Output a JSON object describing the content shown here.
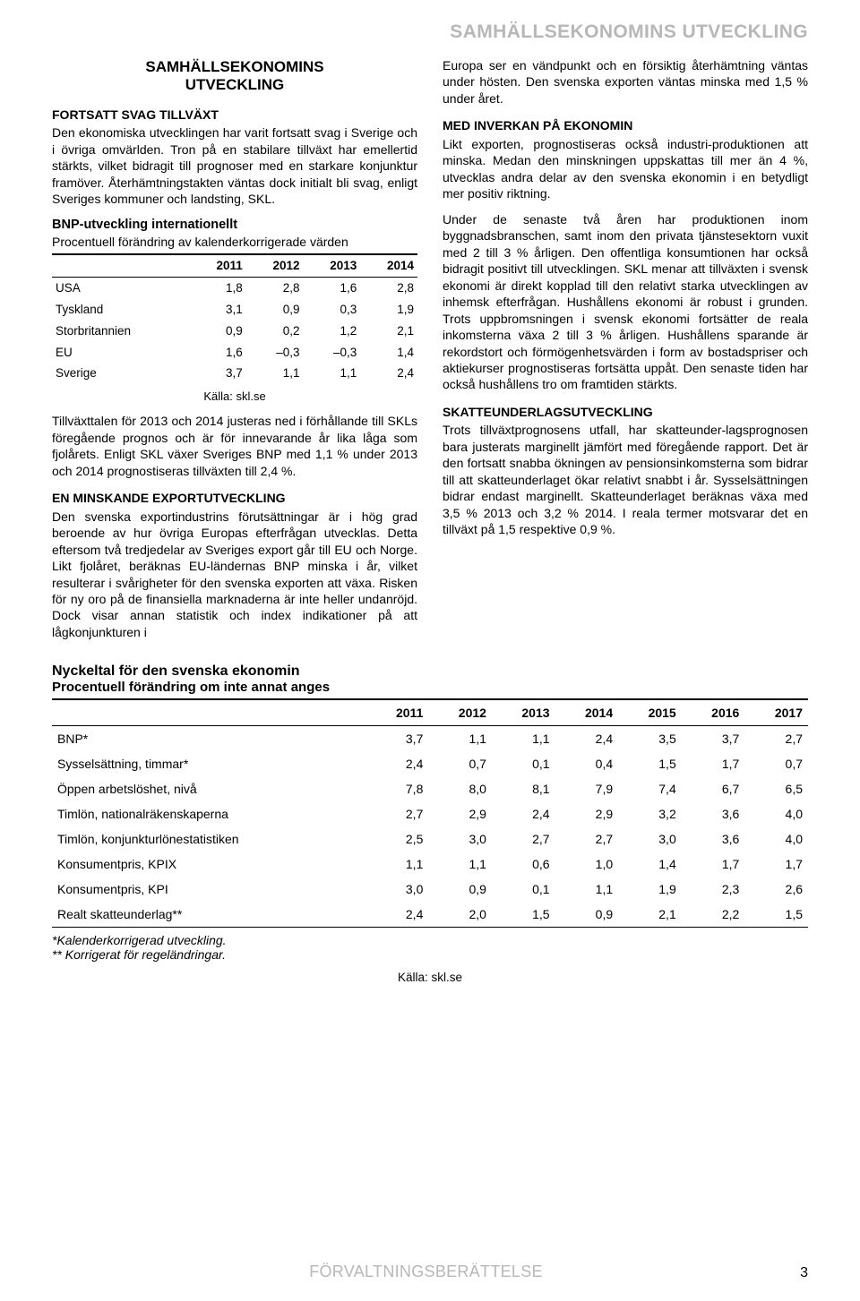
{
  "running_head": "SAMHÄLLSEKONOMINS UTVECKLING",
  "left": {
    "section_title_1": "SAMHÄLLSEKONOMINS",
    "section_title_2": "UTVECKLING",
    "sub1": "FORTSATT SVAG TILLVÄXT",
    "p1": "Den ekonomiska utvecklingen har varit fortsatt svag i Sverige och i övriga omvärlden. Tron på en stabilare tillväxt har emellertid stärkts, vilket bidragit till prognoser med en starkare konjunktur framöver. Återhämtningstakten väntas dock initialt bli svag, enligt Sveriges kommuner och landsting, SKL.",
    "small_tbl": {
      "title": "BNP-utveckling internationellt",
      "sub": "Procentuell förändring av kalenderkorrigerade värden",
      "cols": [
        "",
        "2011",
        "2012",
        "2013",
        "2014"
      ],
      "rows": [
        [
          "USA",
          "1,8",
          "2,8",
          "1,6",
          "2,8"
        ],
        [
          "Tyskland",
          "3,1",
          "0,9",
          "0,3",
          "1,9"
        ],
        [
          "Storbritannien",
          "0,9",
          "0,2",
          "1,2",
          "2,1"
        ],
        [
          "EU",
          "1,6",
          "–0,3",
          "–0,3",
          "1,4"
        ],
        [
          "Sverige",
          "3,7",
          "1,1",
          "1,1",
          "2,4"
        ]
      ],
      "source": "Källa: skl.se"
    },
    "p2": "Tillväxttalen för 2013 och 2014 justeras ned i förhållande till SKLs föregående prognos och är för innevarande år lika låga som fjolårets. Enligt SKL växer Sveriges BNP med 1,1 % under 2013 och 2014 prognostiseras tillväxten till 2,4 %.",
    "sub2": "EN MINSKANDE EXPORTUTVECKLING",
    "p3": "Den svenska exportindustrins förutsättningar är i hög grad beroende av hur övriga Europas efterfrågan utvecklas. Detta eftersom två tredjedelar av Sveriges export går till EU och Norge. Likt fjolåret, beräknas EU-ländernas BNP minska i år, vilket resulterar i svårigheter för den svenska exporten att växa. Risken för ny oro på de finansiella marknaderna är inte heller undanröjd. Dock visar annan statistik och index indikationer på att lågkonjunkturen i"
  },
  "right": {
    "p1": "Europa ser en vändpunkt och en försiktig återhämtning väntas under hösten. Den svenska exporten väntas minska med 1,5 % under året.",
    "sub1": "MED INVERKAN PÅ EKONOMIN",
    "p2": "Likt exporten, prognostiseras också industri-produktionen att minska. Medan den minskningen uppskattas till mer än 4 %, utvecklas andra delar av den svenska ekonomin i en betydligt mer positiv riktning.",
    "p3": "Under de senaste två åren har produktionen inom byggnadsbranschen, samt inom den privata tjänstesektorn vuxit med 2 till 3 % årligen. Den offentliga konsumtionen har också bidragit positivt till utvecklingen. SKL menar att tillväxten i svensk ekonomi är direkt kopplad till den relativt starka utvecklingen av inhemsk efterfrågan. Hushållens ekonomi är robust i grunden. Trots uppbromsningen i svensk ekonomi fortsätter de reala inkomsterna växa 2 till 3 % årligen. Hushållens sparande är rekordstort och förmögenhetsvärden i form av bostadspriser och aktiekurser prognostiseras fortsätta uppåt. Den senaste tiden har också hushållens tro om framtiden stärkts.",
    "sub2": "SKATTEUNDERLAGSUTVECKLING",
    "p4": "Trots tillväxtprognosens utfall, har skatteunder-lagsprognosen bara justerats marginellt jämfört med föregående rapport. Det är den fortsatt snabba ökningen av pensionsinkomsterna som bidrar till att skatteunderlaget ökar relativt snabbt i år. Sysselsättningen bidrar endast marginellt. Skatteunderlaget beräknas växa med 3,5 % 2013 och 3,2 % 2014. I reala termer motsvarar det en tillväxt på 1,5 respektive 0,9 %."
  },
  "wide_tbl": {
    "title": "Nyckeltal för den svenska ekonomin",
    "sub": "Procentuell förändring om inte annat anges",
    "cols": [
      "",
      "2011",
      "2012",
      "2013",
      "2014",
      "2015",
      "2016",
      "2017"
    ],
    "rows": [
      [
        "BNP*",
        "3,7",
        "1,1",
        "1,1",
        "2,4",
        "3,5",
        "3,7",
        "2,7"
      ],
      [
        "Sysselsättning, timmar*",
        "2,4",
        "0,7",
        "0,1",
        "0,4",
        "1,5",
        "1,7",
        "0,7"
      ],
      [
        "Öppen arbetslöshet, nivå",
        "7,8",
        "8,0",
        "8,1",
        "7,9",
        "7,4",
        "6,7",
        "6,5"
      ],
      [
        "Timlön, nationalräkenskaperna",
        "2,7",
        "2,9",
        "2,4",
        "2,9",
        "3,2",
        "3,6",
        "4,0"
      ],
      [
        "Timlön, konjunkturlönestatistiken",
        "2,5",
        "3,0",
        "2,7",
        "2,7",
        "3,0",
        "3,6",
        "4,0"
      ],
      [
        "Konsumentpris, KPIX",
        "1,1",
        "1,1",
        "0,6",
        "1,0",
        "1,4",
        "1,7",
        "1,7"
      ],
      [
        "Konsumentpris, KPI",
        "3,0",
        "0,9",
        "0,1",
        "1,1",
        "1,9",
        "2,3",
        "2,6"
      ],
      [
        "Realt skatteunderlag**",
        "2,4",
        "2,0",
        "1,5",
        "0,9",
        "2,1",
        "2,2",
        "1,5"
      ]
    ],
    "foot1": "*Kalenderkorrigerad utveckling.",
    "foot2": "** Korrigerat för regeländringar.",
    "source": "Källa: skl.se"
  },
  "footer": {
    "label": "FÖRVALTNINGSBERÄTTELSE",
    "page": "3"
  }
}
